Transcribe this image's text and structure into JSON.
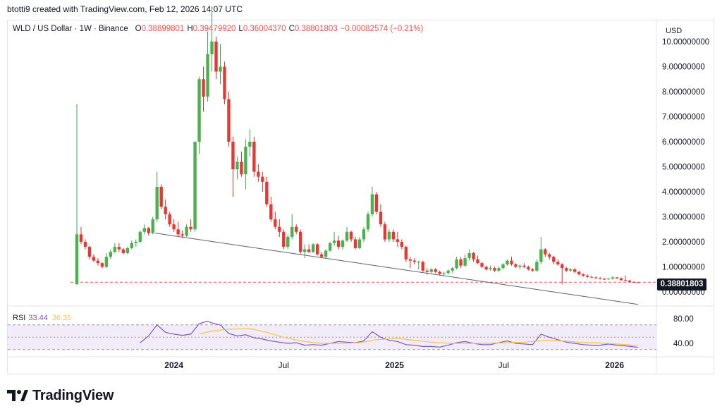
{
  "caption": "btotti9 created with TradingView.com, Feb 12, 2026 14:07 UTC",
  "legend": {
    "symbol": "WLD / US Dollar · 1W · Binance",
    "o_label": "O",
    "o_value": "0.38899801",
    "h_label": "H",
    "h_value": "0.39479920",
    "l_label": "L",
    "l_value": "0.36004370",
    "c_label": "C",
    "c_value": "0.38801803",
    "change": "−0.00082574 (−0.21%)"
  },
  "currency": "USD",
  "last_price": "0.38801803",
  "rsi_legend": {
    "name": "RSI",
    "value": "33.44",
    "ma_value": "36.35"
  },
  "brand": "TradingView",
  "colors": {
    "up": "#26a69a",
    "down": "#ef5350",
    "up_body": "#4caf50",
    "down_body": "#e53935",
    "rsi": "#7e57c2",
    "rsi_ma": "#f7c548"
  },
  "chart_data": [
    {
      "type": "candlestick",
      "title": "WLD / US Dollar · 1W · Binance",
      "ylabel": "USD",
      "y_ticks": [
        "0.00000000",
        "1.00000000",
        "2.00000000",
        "3.00000000",
        "4.00000000",
        "5.00000000",
        "6.00000000",
        "7.00000000",
        "8.00000000",
        "9.00000000",
        "10.00000000"
      ],
      "y_tick_values": [
        0,
        1,
        2,
        3,
        4,
        5,
        6,
        7,
        8,
        9,
        10
      ],
      "x_ticks": [
        "2024",
        "Jul",
        "2025",
        "Jul",
        "2026"
      ],
      "ylim": [
        -0.6,
        10.4
      ],
      "horizontal_line": 0.38801803,
      "trendline": {
        "from": [
          "2023-12-01",
          2.35
        ],
        "to": [
          "2026-02-09",
          -0.5
        ]
      },
      "ohlc": [
        [
          "2023-07-24",
          0.3,
          7.5,
          0.3,
          2.3
        ],
        [
          "2023-07-31",
          2.3,
          2.6,
          1.9,
          2.0
        ],
        [
          "2023-08-07",
          2.0,
          2.1,
          1.7,
          1.8
        ],
        [
          "2023-08-14",
          1.8,
          1.85,
          1.3,
          1.4
        ],
        [
          "2023-08-21",
          1.4,
          1.5,
          1.2,
          1.25
        ],
        [
          "2023-08-28",
          1.25,
          1.35,
          1.05,
          1.15
        ],
        [
          "2023-09-04",
          1.15,
          1.2,
          0.95,
          1.0
        ],
        [
          "2023-09-11",
          1.0,
          1.55,
          0.95,
          1.4
        ],
        [
          "2023-09-18",
          1.4,
          1.7,
          1.3,
          1.6
        ],
        [
          "2023-09-25",
          1.6,
          1.95,
          1.55,
          1.8
        ],
        [
          "2023-10-02",
          1.8,
          1.95,
          1.6,
          1.7
        ],
        [
          "2023-10-09",
          1.7,
          1.75,
          1.5,
          1.55
        ],
        [
          "2023-10-16",
          1.55,
          1.8,
          1.5,
          1.75
        ],
        [
          "2023-10-23",
          1.75,
          2.05,
          1.7,
          1.95
        ],
        [
          "2023-10-30",
          1.95,
          2.1,
          1.8,
          2.0
        ],
        [
          "2023-11-06",
          2.0,
          2.45,
          1.95,
          2.4
        ],
        [
          "2023-11-13",
          2.4,
          2.7,
          2.3,
          2.55
        ],
        [
          "2023-11-20",
          2.55,
          2.6,
          2.25,
          2.35
        ],
        [
          "2023-11-27",
          2.35,
          3.0,
          2.3,
          2.9
        ],
        [
          "2023-12-04",
          2.9,
          4.8,
          2.8,
          4.2
        ],
        [
          "2023-12-11",
          4.2,
          4.3,
          3.3,
          3.4
        ],
        [
          "2023-12-18",
          3.4,
          3.7,
          2.9,
          3.1
        ],
        [
          "2023-12-25",
          3.1,
          3.2,
          2.6,
          2.7
        ],
        [
          "2024-01-01",
          2.7,
          2.9,
          2.4,
          2.5
        ],
        [
          "2024-01-08",
          2.5,
          2.8,
          2.2,
          2.3
        ],
        [
          "2024-01-15",
          2.3,
          2.45,
          2.15,
          2.25
        ],
        [
          "2024-01-22",
          2.25,
          2.7,
          2.2,
          2.6
        ],
        [
          "2024-01-29",
          2.6,
          2.9,
          2.4,
          2.5
        ],
        [
          "2024-02-05",
          2.5,
          6.0,
          2.4,
          6.0
        ],
        [
          "2024-02-12",
          6.0,
          8.6,
          5.5,
          8.5
        ],
        [
          "2024-02-19",
          8.5,
          9.0,
          7.2,
          7.8
        ],
        [
          "2024-02-26",
          7.8,
          10.4,
          7.6,
          9.5
        ],
        [
          "2024-03-04",
          9.5,
          11.4,
          8.8,
          10.0
        ],
        [
          "2024-03-11",
          10.0,
          10.2,
          8.5,
          8.8
        ],
        [
          "2024-03-18",
          8.8,
          9.9,
          8.3,
          9.0
        ],
        [
          "2024-03-25",
          9.0,
          9.2,
          7.5,
          7.7
        ],
        [
          "2024-04-01",
          7.7,
          8.0,
          5.8,
          6.0
        ],
        [
          "2024-04-08",
          6.0,
          6.2,
          3.8,
          4.9
        ],
        [
          "2024-04-15",
          4.9,
          5.4,
          4.5,
          5.2
        ],
        [
          "2024-04-22",
          5.2,
          5.6,
          4.6,
          4.7
        ],
        [
          "2024-04-29",
          4.7,
          6.1,
          4.1,
          5.8
        ],
        [
          "2024-05-06",
          5.8,
          6.5,
          5.4,
          6.0
        ],
        [
          "2024-05-13",
          6.0,
          6.2,
          4.6,
          4.8
        ],
        [
          "2024-05-20",
          4.8,
          5.1,
          4.4,
          4.6
        ],
        [
          "2024-05-27",
          4.6,
          4.8,
          4.0,
          4.4
        ],
        [
          "2024-06-03",
          4.4,
          4.6,
          3.4,
          3.5
        ],
        [
          "2024-06-10",
          3.5,
          3.8,
          2.8,
          2.9
        ],
        [
          "2024-06-17",
          2.9,
          3.2,
          2.5,
          2.6
        ],
        [
          "2024-06-24",
          2.6,
          2.9,
          2.2,
          2.4
        ],
        [
          "2024-07-01",
          2.4,
          2.5,
          1.7,
          1.8
        ],
        [
          "2024-07-08",
          1.8,
          2.3,
          1.7,
          2.2
        ],
        [
          "2024-07-15",
          2.2,
          3.1,
          2.1,
          2.6
        ],
        [
          "2024-07-22",
          2.6,
          2.7,
          2.3,
          2.4
        ],
        [
          "2024-07-29",
          2.4,
          2.5,
          1.5,
          1.6
        ],
        [
          "2024-08-05",
          1.6,
          1.9,
          1.35,
          1.7
        ],
        [
          "2024-08-12",
          1.7,
          1.9,
          1.55,
          1.6
        ],
        [
          "2024-08-19",
          1.6,
          1.95,
          1.55,
          1.9
        ],
        [
          "2024-08-26",
          1.9,
          1.95,
          1.45,
          1.5
        ],
        [
          "2024-09-02",
          1.5,
          1.6,
          1.35,
          1.4
        ],
        [
          "2024-09-09",
          1.4,
          1.7,
          1.35,
          1.65
        ],
        [
          "2024-09-16",
          1.65,
          2.0,
          1.6,
          1.95
        ],
        [
          "2024-09-23",
          1.95,
          2.4,
          1.85,
          2.05
        ],
        [
          "2024-09-30",
          2.05,
          2.25,
          1.7,
          1.8
        ],
        [
          "2024-10-07",
          1.8,
          2.1,
          1.7,
          2.05
        ],
        [
          "2024-10-14",
          2.05,
          2.6,
          2.0,
          2.4
        ],
        [
          "2024-10-21",
          2.4,
          2.45,
          2.0,
          2.1
        ],
        [
          "2024-10-28",
          2.1,
          2.2,
          1.7,
          1.75
        ],
        [
          "2024-11-04",
          1.75,
          2.2,
          1.7,
          2.1
        ],
        [
          "2024-11-11",
          2.1,
          2.6,
          2.0,
          2.5
        ],
        [
          "2024-11-18",
          2.5,
          3.2,
          2.4,
          3.1
        ],
        [
          "2024-11-25",
          3.1,
          4.2,
          3.0,
          3.9
        ],
        [
          "2024-12-02",
          3.9,
          4.0,
          3.1,
          3.2
        ],
        [
          "2024-12-09",
          3.2,
          3.5,
          2.6,
          2.7
        ],
        [
          "2024-12-16",
          2.7,
          2.8,
          2.0,
          2.1
        ],
        [
          "2024-12-23",
          2.1,
          2.5,
          2.0,
          2.4
        ],
        [
          "2024-12-30",
          2.4,
          2.5,
          2.0,
          2.1
        ],
        [
          "2025-01-06",
          2.1,
          2.4,
          1.8,
          2.0
        ],
        [
          "2025-01-13",
          2.0,
          2.1,
          1.7,
          1.8
        ],
        [
          "2025-01-20",
          1.8,
          1.85,
          1.2,
          1.3
        ],
        [
          "2025-01-27",
          1.3,
          1.4,
          0.95,
          1.25
        ],
        [
          "2025-02-03",
          1.25,
          1.35,
          1.1,
          1.2
        ],
        [
          "2025-02-10",
          1.2,
          1.25,
          0.9,
          1.2
        ],
        [
          "2025-02-17",
          1.2,
          1.25,
          0.8,
          0.85
        ],
        [
          "2025-02-24",
          0.85,
          0.95,
          0.7,
          0.8
        ],
        [
          "2025-03-03",
          0.8,
          0.95,
          0.75,
          0.9
        ],
        [
          "2025-03-10",
          0.9,
          0.95,
          0.75,
          0.8
        ],
        [
          "2025-03-17",
          0.8,
          0.85,
          0.68,
          0.72
        ],
        [
          "2025-03-24",
          0.72,
          0.8,
          0.65,
          0.75
        ],
        [
          "2025-03-31",
          0.75,
          0.9,
          0.7,
          0.85
        ],
        [
          "2025-04-07",
          0.85,
          1.0,
          0.75,
          0.95
        ],
        [
          "2025-04-14",
          0.95,
          1.4,
          0.9,
          1.3
        ],
        [
          "2025-04-21",
          1.3,
          1.4,
          0.95,
          1.05
        ],
        [
          "2025-04-28",
          1.05,
          1.5,
          1.0,
          1.35
        ],
        [
          "2025-05-05",
          1.35,
          1.7,
          1.25,
          1.55
        ],
        [
          "2025-05-12",
          1.55,
          1.6,
          1.2,
          1.3
        ],
        [
          "2025-05-19",
          1.3,
          1.45,
          1.1,
          1.15
        ],
        [
          "2025-05-26",
          1.15,
          1.2,
          0.95,
          1.0
        ],
        [
          "2025-06-02",
          1.0,
          1.05,
          0.85,
          0.9
        ],
        [
          "2025-06-09",
          0.9,
          1.05,
          0.85,
          0.95
        ],
        [
          "2025-06-16",
          0.95,
          1.0,
          0.8,
          0.85
        ],
        [
          "2025-06-23",
          0.85,
          1.0,
          0.8,
          0.95
        ],
        [
          "2025-06-30",
          0.95,
          1.15,
          0.9,
          1.1
        ],
        [
          "2025-07-07",
          1.1,
          1.3,
          1.05,
          1.25
        ],
        [
          "2025-07-14",
          1.25,
          1.4,
          1.05,
          1.1
        ],
        [
          "2025-07-21",
          1.1,
          1.15,
          0.95,
          1.0
        ],
        [
          "2025-07-28",
          1.0,
          1.1,
          0.9,
          1.05
        ],
        [
          "2025-08-04",
          1.05,
          1.15,
          0.95,
          1.0
        ],
        [
          "2025-08-11",
          1.0,
          1.05,
          0.85,
          0.9
        ],
        [
          "2025-08-18",
          0.9,
          0.95,
          0.8,
          0.85
        ],
        [
          "2025-08-25",
          0.85,
          1.3,
          0.8,
          1.2
        ],
        [
          "2025-09-01",
          1.2,
          2.2,
          1.1,
          1.7
        ],
        [
          "2025-09-08",
          1.7,
          1.75,
          1.4,
          1.5
        ],
        [
          "2025-09-15",
          1.5,
          1.55,
          1.3,
          1.4
        ],
        [
          "2025-09-22",
          1.4,
          1.45,
          1.1,
          1.2
        ],
        [
          "2025-09-29",
          1.2,
          1.3,
          1.05,
          1.1
        ],
        [
          "2025-10-06",
          1.1,
          1.15,
          0.3,
          0.95
        ],
        [
          "2025-10-13",
          0.95,
          1.0,
          0.8,
          0.85
        ],
        [
          "2025-10-20",
          0.85,
          0.95,
          0.8,
          0.9
        ],
        [
          "2025-10-27",
          0.9,
          0.95,
          0.75,
          0.8
        ],
        [
          "2025-11-03",
          0.8,
          0.85,
          0.65,
          0.7
        ],
        [
          "2025-11-10",
          0.7,
          0.75,
          0.6,
          0.65
        ],
        [
          "2025-11-17",
          0.65,
          0.7,
          0.55,
          0.6
        ],
        [
          "2025-11-24",
          0.6,
          0.65,
          0.55,
          0.58
        ],
        [
          "2025-12-01",
          0.58,
          0.62,
          0.52,
          0.55
        ],
        [
          "2025-12-08",
          0.55,
          0.6,
          0.5,
          0.52
        ],
        [
          "2025-12-15",
          0.52,
          0.56,
          0.48,
          0.5
        ],
        [
          "2025-12-22",
          0.5,
          0.55,
          0.48,
          0.53
        ],
        [
          "2025-12-29",
          0.53,
          0.62,
          0.5,
          0.58
        ],
        [
          "2026-01-05",
          0.58,
          0.6,
          0.52,
          0.54
        ],
        [
          "2026-01-12",
          0.54,
          0.58,
          0.45,
          0.47
        ],
        [
          "2026-01-19",
          0.47,
          0.65,
          0.42,
          0.45
        ],
        [
          "2026-01-26",
          0.45,
          0.48,
          0.38,
          0.4
        ],
        [
          "2026-02-02",
          0.4,
          0.42,
          0.36,
          0.39
        ],
        [
          "2026-02-09",
          0.389,
          0.395,
          0.36,
          0.388
        ]
      ]
    },
    {
      "type": "line",
      "title": "RSI",
      "ylim": [
        27,
        82
      ],
      "y_ticks": [
        "80.00",
        "40.00"
      ],
      "y_tick_values": [
        80,
        40
      ],
      "bands": [
        70,
        30
      ],
      "series": [
        {
          "name": "RSI",
          "x": [
            "2023-11-06",
            "2023-11-20",
            "2023-12-04",
            "2023-12-18",
            "2024-01-01",
            "2024-01-15",
            "2024-01-29",
            "2024-02-12",
            "2024-02-26",
            "2024-03-04",
            "2024-03-18",
            "2024-04-01",
            "2024-04-15",
            "2024-04-29",
            "2024-05-13",
            "2024-05-27",
            "2024-06-10",
            "2024-06-24",
            "2024-07-08",
            "2024-07-22",
            "2024-08-05",
            "2024-08-19",
            "2024-09-02",
            "2024-09-16",
            "2024-09-30",
            "2024-10-14",
            "2024-10-28",
            "2024-11-11",
            "2024-11-25",
            "2024-12-09",
            "2024-12-23",
            "2025-01-06",
            "2025-01-20",
            "2025-02-03",
            "2025-02-17",
            "2025-03-03",
            "2025-03-17",
            "2025-03-31",
            "2025-04-14",
            "2025-04-28",
            "2025-05-12",
            "2025-05-26",
            "2025-06-09",
            "2025-06-23",
            "2025-07-07",
            "2025-07-21",
            "2025-08-04",
            "2025-08-18",
            "2025-09-01",
            "2025-09-15",
            "2025-09-29",
            "2025-10-13",
            "2025-10-27",
            "2025-11-10",
            "2025-11-24",
            "2025-12-08",
            "2025-12-22",
            "2026-01-05",
            "2026-01-19",
            "2026-02-09"
          ],
          "values": [
            41,
            52,
            70,
            58,
            55,
            53,
            55,
            72,
            76,
            73,
            70,
            56,
            52,
            54,
            49,
            47,
            44,
            42,
            40,
            41,
            37,
            38,
            37,
            40,
            43,
            42,
            41,
            44,
            59,
            50,
            45,
            43,
            38,
            37,
            35,
            35,
            34,
            37,
            41,
            43,
            40,
            38,
            38,
            41,
            44,
            40,
            39,
            38,
            55,
            50,
            46,
            42,
            40,
            38,
            37,
            37,
            39,
            37,
            36,
            33.44
          ]
        },
        {
          "name": "RSI-based MA",
          "x": [
            "2024-02-12",
            "2024-03-04",
            "2024-04-01",
            "2024-05-06",
            "2024-06-03",
            "2024-07-01",
            "2024-08-05",
            "2024-09-02",
            "2024-10-07",
            "2024-11-04",
            "2024-12-02",
            "2025-01-06",
            "2025-02-03",
            "2025-03-03",
            "2025-04-07",
            "2025-05-05",
            "2025-06-02",
            "2025-07-07",
            "2025-08-04",
            "2025-09-08",
            "2025-10-06",
            "2025-11-03",
            "2025-12-01",
            "2026-01-05",
            "2026-02-09"
          ],
          "values": [
            55,
            60,
            63,
            64,
            58,
            50,
            43,
            40,
            40,
            41,
            46,
            48,
            45,
            42,
            40,
            40,
            40,
            41,
            42,
            45,
            44,
            42,
            41,
            39,
            36.35
          ]
        }
      ]
    }
  ]
}
